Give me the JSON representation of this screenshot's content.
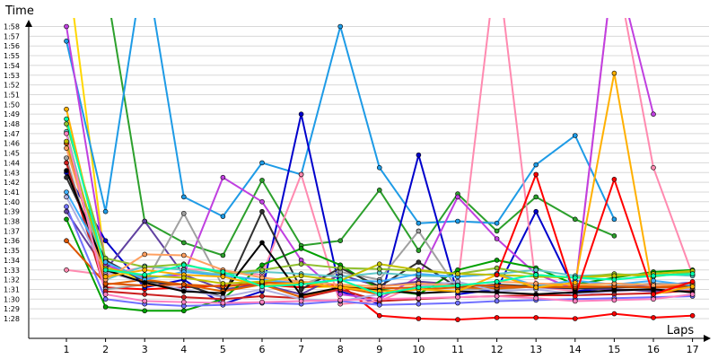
{
  "chart_data": {
    "type": "line",
    "title": "",
    "ylabel": "Time",
    "xlabel": "Laps",
    "x": [
      1,
      2,
      3,
      4,
      5,
      6,
      7,
      8,
      9,
      10,
      11,
      12,
      13,
      14,
      15,
      16,
      17
    ],
    "x_ticks": [
      "1",
      "2",
      "3",
      "4",
      "5",
      "6",
      "7",
      "8",
      "9",
      "10",
      "11",
      "12",
      "13",
      "14",
      "15",
      "16",
      "17"
    ],
    "y_ticks": [
      "1:28",
      "1:29",
      "1:30",
      "1:31",
      "1:32",
      "1:33",
      "1:34",
      "1:35",
      "1:36",
      "1:37",
      "1:38",
      "1:39",
      "1:40",
      "1:41",
      "1:42",
      "1:43",
      "1:44",
      "1:45",
      "1:46",
      "1:47",
      "1:48",
      "1:49",
      "1:50",
      "1:51",
      "1:52",
      "1:53",
      "1:54",
      "1:55",
      "1:56",
      "1:57",
      "1:58"
    ],
    "y_unit": "seconds",
    "ylim": [
      87,
      124
    ],
    "xlim": [
      0.1,
      17.2
    ],
    "grid": true,
    "legend": "none",
    "series": [
      {
        "color": "#ffd700",
        "values": [
          125,
          93.5,
          91.8,
          91.5,
          91.3,
          91.5,
          91.2,
          91.3,
          91.4,
          91.5,
          91.3,
          91.2,
          91.5,
          91.4,
          91.6,
          91.5,
          91.6
        ]
      },
      {
        "color": "#2ca02c",
        "values": [
          123,
          122.5,
          98,
          95.8,
          94.5,
          102.2,
          95.5,
          96,
          101.2,
          95,
          100.8,
          97,
          100.5,
          98.2,
          96.5,
          null,
          null
        ]
      },
      {
        "color": "#ff0000",
        "values": [
          106,
          91.2,
          91,
          91.2,
          91.4,
          91.5,
          91.2,
          91.5,
          88.3,
          88,
          87.9,
          88.1,
          88.1,
          88,
          88.5,
          88.1,
          88.3
        ]
      },
      {
        "color": "#1e9be6",
        "values": [
          116.5,
          99,
          125,
          100.5,
          98.5,
          104,
          102.8,
          118,
          103.5,
          97.8,
          98,
          97.8,
          103.8,
          106.8,
          98.2,
          null,
          null
        ]
      },
      {
        "color": "#0000cc",
        "values": [
          103,
          96,
          91.2,
          92,
          89.5,
          90.8,
          109,
          90.8,
          89.5,
          104.8,
          90.5,
          91,
          99,
          90.8,
          91.2,
          91.4,
          91.7
        ]
      },
      {
        "color": "#ff8ab0",
        "values": [
          93,
          92.5,
          93.3,
          93.1,
          92.9,
          92.5,
          102.8,
          89.5,
          89.8,
          91.5,
          91.5,
          125,
          91.3,
          90.8,
          125,
          103.5,
          92.5
        ]
      },
      {
        "color": "#c040e0",
        "values": [
          118,
          93.5,
          92.2,
          92.5,
          102.5,
          100,
          94,
          90.5,
          90,
          92.3,
          100.5,
          96.2,
          92.6,
          91,
          125,
          109,
          null
        ]
      },
      {
        "color": "#6040a0",
        "values": [
          99,
          93,
          98,
          92.5,
          91,
          91.5,
          90.5,
          92.5,
          91.3,
          91.8,
          91.5,
          91.3,
          91.2,
          91.1,
          91,
          90.8,
          91
        ]
      },
      {
        "color": "#a0a0a0",
        "values": [
          104.5,
          91,
          91.5,
          98.8,
          91.3,
          91.8,
          91.5,
          92.8,
          92,
          97,
          91,
          91,
          91.3,
          91.2,
          91.3,
          91.6,
          91.5
        ]
      },
      {
        "color": "#00a000",
        "values": [
          98.2,
          89.2,
          88.8,
          88.8,
          90,
          93.5,
          95.2,
          93.5,
          91,
          90.5,
          93,
          94,
          93.2,
          91.5,
          92.2,
          92.8,
          93
        ]
      },
      {
        "color": "#303030",
        "values": [
          102.5,
          94,
          91.8,
          91.5,
          90.2,
          99,
          91,
          93.2,
          91.3,
          93.8,
          91.2,
          91.5,
          91.3,
          91.1,
          91.2,
          91.2,
          91.4
        ]
      },
      {
        "color": "#e06000",
        "values": [
          106,
          91.5,
          92,
          91.5,
          90.8,
          91.5,
          90.2,
          91.2,
          90.5,
          91,
          91.2,
          91.1,
          91.3,
          91.2,
          91.3,
          91.2,
          91.5
        ]
      },
      {
        "color": "#cc2020",
        "values": [
          104,
          90.8,
          90.5,
          90.2,
          90,
          90.3,
          90.1,
          91,
          89.8,
          90,
          90.2,
          90.3,
          90.4,
          90.4,
          90.5,
          90.6,
          90.9
        ]
      },
      {
        "color": "#60c8c8",
        "values": [
          107.2,
          92,
          93.4,
          93,
          92.5,
          92.8,
          92.6,
          92.3,
          92.7,
          92.4,
          92.3,
          92.6,
          93,
          92.4,
          92.5,
          92.6,
          92.4
        ]
      },
      {
        "color": "#90c030",
        "values": [
          108,
          94.2,
          93.3,
          93.6,
          92.6,
          93,
          93.6,
          93.2,
          93.1,
          92.9,
          92.6,
          93.2,
          92.5,
          92.2,
          92.6,
          92.3,
          92.8
        ]
      },
      {
        "color": "#b0b0e0",
        "values": [
          100.5,
          92.8,
          91.7,
          91,
          90.2,
          91,
          90,
          89.8,
          90.5,
          91.3,
          91.8,
          90.8,
          91,
          90.5,
          90.8,
          91,
          91
        ]
      },
      {
        "color": "#40b0ff",
        "values": [
          101,
          93.8,
          92,
          92.8,
          92.4,
          92,
          91.6,
          92,
          91.8,
          92.6,
          92.3,
          92.6,
          91.4,
          91.9,
          91.5,
          91.9,
          91.4
        ]
      },
      {
        "color": "#dd5500",
        "values": [
          96,
          91.6,
          91.4,
          91.5,
          91.3,
          91.7,
          91.6,
          91.2,
          91.1,
          91.2,
          91.4,
          91.4,
          91.2,
          91.3,
          91.3,
          91.2,
          91.2
        ]
      },
      {
        "color": "#ffa060",
        "values": [
          105.5,
          92,
          94.6,
          94.5,
          93,
          92.2,
          91.8,
          91.5,
          91.3,
          91.6,
          91.4,
          91.8,
          91.6,
          91.5,
          91.6,
          91.4,
          91.6
        ]
      },
      {
        "color": "#7070ff",
        "values": [
          99.5,
          90,
          89.5,
          89.3,
          89.4,
          89.6,
          89.5,
          89.8,
          89.4,
          89.5,
          89.6,
          89.8,
          89.9,
          90,
          90.1,
          90.2,
          90.3
        ]
      },
      {
        "color": "#000000",
        "values": [
          103.2,
          93,
          91.7,
          90.8,
          90.6,
          95.8,
          90.4,
          91.2,
          90.9,
          90.6,
          90.8,
          90.7,
          90.5,
          90.7,
          90.9,
          91,
          90.7
        ]
      },
      {
        "color": "#ffb000",
        "values": [
          109.5,
          92.3,
          93,
          92.5,
          92.3,
          91.4,
          91.7,
          91.2,
          90.8,
          91,
          90.8,
          92.5,
          91.2,
          91.7,
          113.2,
          90.5,
          91.3
        ]
      },
      {
        "color": "#c0c000",
        "values": [
          106.2,
          93.2,
          92.4,
          92.2,
          91.6,
          91.8,
          92.4,
          91.9,
          93.6,
          93,
          92.6,
          92.5,
          92.3,
          92.2,
          92.4,
          92.6,
          92.9
        ]
      },
      {
        "color": "#00ffaa",
        "values": [
          108.5,
          93,
          92.5,
          93.5,
          92.8,
          91.3,
          91.5,
          92,
          90.5,
          91.2,
          91.4,
          91.8,
          92.5,
          92.2,
          92,
          92.4,
          92.6
        ]
      },
      {
        "color": "#ff0000",
        "values": [
          null,
          null,
          null,
          null,
          null,
          null,
          null,
          null,
          null,
          null,
          null,
          92.5,
          102.8,
          90.3,
          102.3,
          90.5,
          91.8
        ]
      },
      {
        "color": "#ff80c0",
        "values": [
          107,
          90.5,
          89.8,
          89.7,
          89.6,
          89.7,
          89.8,
          89.9,
          90,
          90.1,
          90.2,
          90.3,
          90.1,
          89.8,
          89.9,
          90,
          90.5
        ]
      }
    ]
  }
}
